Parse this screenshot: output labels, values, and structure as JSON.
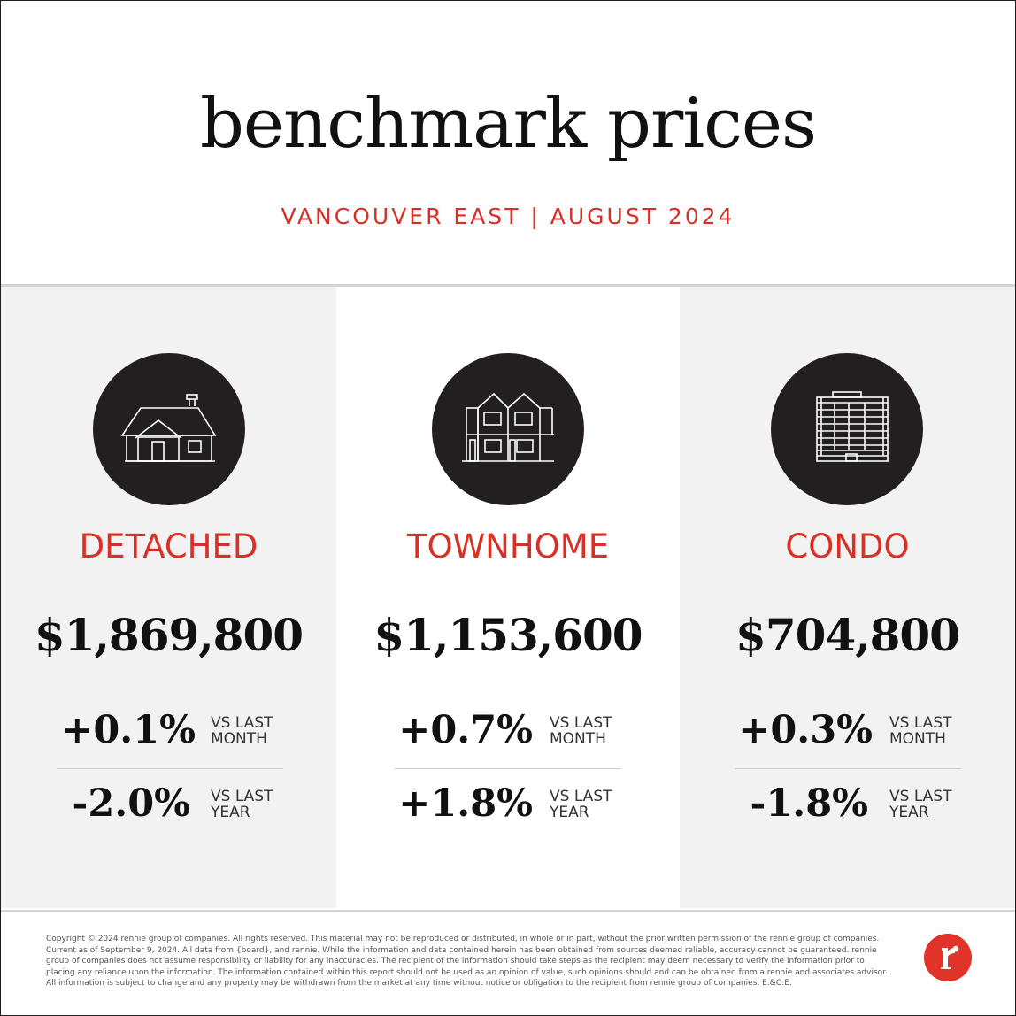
{
  "header": {
    "title": "benchmark prices",
    "subtitle": "VANCOUVER EAST | AUGUST 2024"
  },
  "panels": [
    {
      "icon": "detached-house-icon",
      "type": "DETACHED",
      "price": "$1,869,800",
      "month_change": "+0.1%",
      "month_label_1": "VS LAST",
      "month_label_2": "MONTH",
      "year_change": "-2.0%",
      "year_label_1": "VS LAST",
      "year_label_2": "YEAR"
    },
    {
      "icon": "townhome-icon",
      "type": "TOWNHOME",
      "price": "$1,153,600",
      "month_change": "+0.7%",
      "month_label_1": "VS LAST",
      "month_label_2": "MONTH",
      "year_change": "+1.8%",
      "year_label_1": "VS LAST",
      "year_label_2": "YEAR"
    },
    {
      "icon": "condo-building-icon",
      "type": "CONDO",
      "price": "$704,800",
      "month_change": "+0.3%",
      "month_label_1": "VS LAST",
      "month_label_2": "MONTH",
      "year_change": "-1.8%",
      "year_label_1": "VS LAST",
      "year_label_2": "YEAR"
    }
  ],
  "footer": {
    "legal": "Copyright © 2024 rennie group of companies. All rights reserved. This material may not be reproduced or distributed, in whole or in part, without the prior written permission of the rennie group of companies. Current as of September 9, 2024. All data from {board}, and rennie. While the information and data contained herein has been obtained from sources deemed reliable, accuracy cannot be guaranteed. rennie group of companies does not assume responsibility or liability for any inaccuracies. The recipient of the information should take steps as the recipient may deem necessary to verify the information prior to placing any reliance upon the information. The information contained within this report should not be used as an opinion of value, such opinions should and can be obtained from a rennie and associates advisor. All information is subject to change and any property may be withdrawn from the market at any time without notice or obligation to the recipient from rennie group of companies. E.&O.E.",
    "logo_icon": "rennie-logo-icon"
  },
  "colors": {
    "accent": "#d93025",
    "dark": "#231f20",
    "panel_grey": "#f2f2f2"
  }
}
